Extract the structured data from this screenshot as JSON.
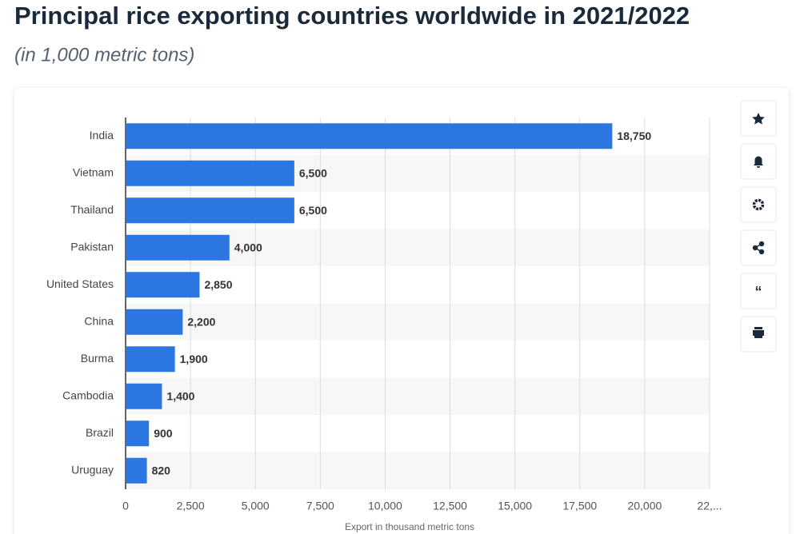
{
  "chart_data": {
    "type": "hbar",
    "title": "Principal rice exporting countries worldwide in 2021/2022",
    "subtitle": "(in 1,000 metric tons)",
    "categories": [
      "India",
      "Vietnam",
      "Thailand",
      "Pakistan",
      "United States",
      "China",
      "Burma",
      "Cambodia",
      "Brazil",
      "Uruguay"
    ],
    "values": [
      18750,
      6500,
      6500,
      4000,
      2850,
      2200,
      1900,
      1400,
      900,
      820
    ],
    "value_labels": [
      "18,750",
      "6,500",
      "6,500",
      "4,000",
      "2,850",
      "2,200",
      "1,900",
      "1,400",
      "900",
      "820"
    ],
    "color": "#2b76e0",
    "xlim": [
      0,
      22500
    ],
    "xticks": [
      0,
      {
        "value": 2500,
        "label": "2,500"
      },
      {
        "value": 5000,
        "label": "5,000"
      },
      {
        "value": 7500,
        "label": "7,500"
      },
      {
        "value": 10000,
        "label": "10,000"
      },
      {
        "value": 12500,
        "label": "12,500"
      },
      {
        "value": 15000,
        "label": "15,000"
      },
      {
        "value": 17500,
        "label": "17,500"
      },
      {
        "value": 20000,
        "label": "20,000"
      },
      {
        "value": 22500,
        "label": "22,..."
      }
    ],
    "x_label": "Export in thousand metric tons",
    "grid": true
  }
}
